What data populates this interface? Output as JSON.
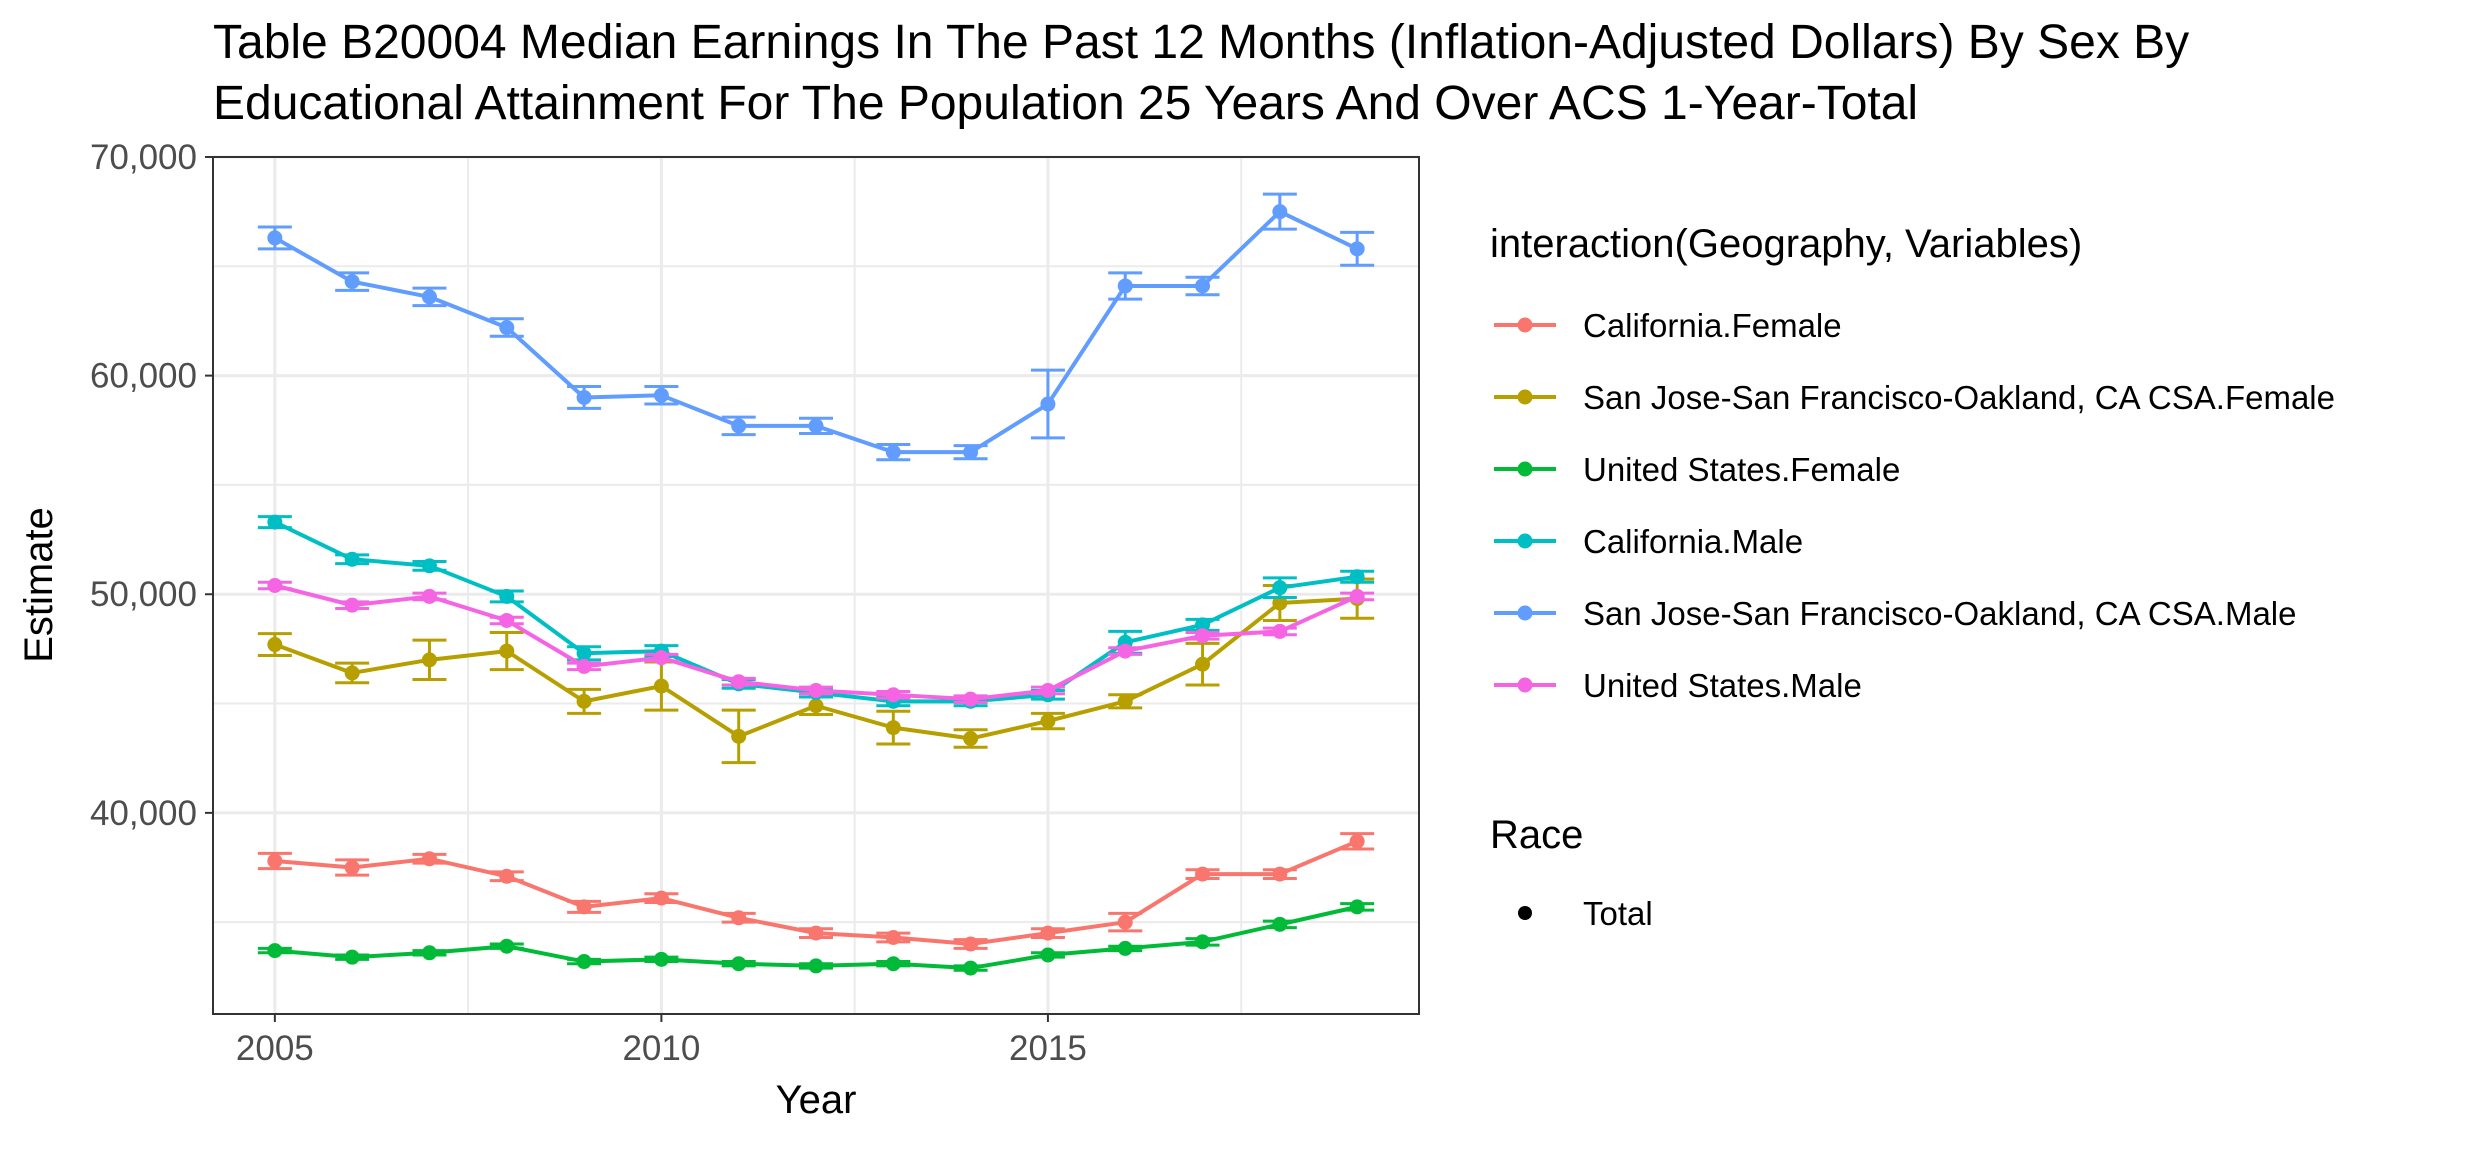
{
  "chart_data": {
    "type": "line",
    "title_lines": [
      "Table B20004 Median Earnings In The Past 12 Months (Inflation-Adjusted Dollars) By Sex By",
      "Educational Attainment For The Population 25 Years And Over ACS 1-Year-Total"
    ],
    "xlabel": "Year",
    "ylabel": "Estimate",
    "xlim": [
      2004.2,
      2019.8
    ],
    "ylim": [
      30800,
      70000
    ],
    "x_ticks": [
      2005,
      2010,
      2015
    ],
    "x_tick_labels": [
      "2005",
      "2010",
      "2015"
    ],
    "y_ticks": [
      40000,
      50000,
      60000,
      70000
    ],
    "y_tick_labels": [
      "40,000",
      "50,000",
      "60,000",
      "70,000"
    ],
    "x_minor_ticks": [
      2007.5,
      2012.5,
      2017.5
    ],
    "y_minor_ticks": [
      35000,
      45000,
      55000,
      65000
    ],
    "grid": true,
    "legend_position": "right",
    "legend_title": "interaction(Geography, Variables)",
    "shape_legend_title": "Race",
    "shape_legend_entries": [
      "Total"
    ],
    "x": [
      2005,
      2006,
      2007,
      2008,
      2009,
      2010,
      2011,
      2012,
      2013,
      2014,
      2015,
      2016,
      2017,
      2018,
      2019
    ],
    "series": [
      {
        "name": "California.Female",
        "color": "#F8766D",
        "values": [
          37800,
          37500,
          37900,
          37100,
          35700,
          36100,
          35200,
          34500,
          34300,
          34000,
          34500,
          35000,
          37200,
          37200,
          38700
        ],
        "moe": [
          350,
          350,
          200,
          200,
          250,
          200,
          200,
          200,
          200,
          200,
          200,
          400,
          200,
          200,
          350
        ]
      },
      {
        "name": "San Jose-San Francisco-Oakland, CA CSA.Female",
        "color": "#B79F00",
        "values": [
          47700,
          46400,
          47000,
          47400,
          45100,
          45800,
          43500,
          44900,
          43900,
          43400,
          44200,
          45100,
          46800,
          49600,
          49800
        ],
        "moe": [
          500,
          450,
          900,
          850,
          550,
          1100,
          1200,
          400,
          750,
          400,
          350,
          300,
          950,
          800,
          900
        ]
      },
      {
        "name": "United States.Female",
        "color": "#00BA38",
        "values": [
          33700,
          33400,
          33600,
          33900,
          33200,
          33300,
          33100,
          33000,
          33100,
          32900,
          33500,
          33800,
          34100,
          34900,
          35700
        ],
        "moe": [
          100,
          100,
          100,
          100,
          100,
          100,
          100,
          100,
          100,
          100,
          100,
          100,
          150,
          150,
          150
        ]
      },
      {
        "name": "California.Male",
        "color": "#00BFC4",
        "values": [
          53300,
          51600,
          51300,
          49900,
          47300,
          47400,
          45900,
          45500,
          45100,
          45100,
          45400,
          47800,
          48600,
          50300,
          50800
        ],
        "moe": [
          250,
          200,
          200,
          250,
          300,
          250,
          200,
          200,
          200,
          200,
          200,
          500,
          250,
          450,
          250
        ]
      },
      {
        "name": "San Jose-San Francisco-Oakland, CA CSA.Male",
        "color": "#619CFF",
        "values": [
          66300,
          64300,
          63600,
          62200,
          59000,
          59100,
          57700,
          57700,
          56500,
          56500,
          58700,
          64100,
          64100,
          67500,
          65800
        ],
        "moe": [
          500,
          400,
          400,
          400,
          500,
          400,
          400,
          350,
          350,
          300,
          1550,
          600,
          400,
          800,
          750
        ]
      },
      {
        "name": "United States.Male",
        "color": "#F564E3",
        "values": [
          50400,
          49500,
          49900,
          48800,
          46700,
          47100,
          46000,
          45600,
          45400,
          45200,
          45600,
          47400,
          48100,
          48300,
          49900
        ],
        "moe": [
          150,
          150,
          150,
          150,
          150,
          150,
          150,
          150,
          150,
          150,
          150,
          150,
          150,
          150,
          150
        ]
      }
    ]
  }
}
